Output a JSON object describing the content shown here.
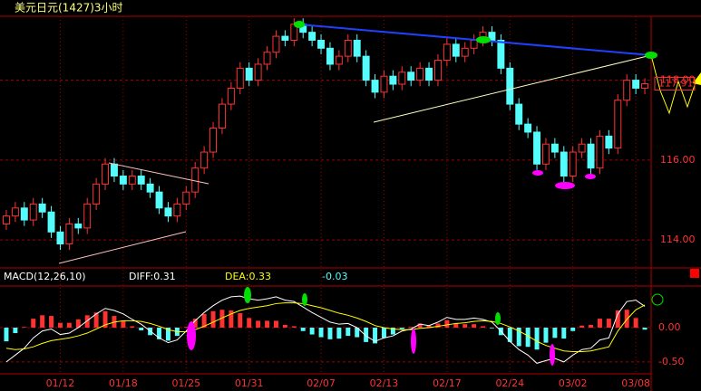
{
  "chart_data": {
    "type": "candlestick",
    "title": "美元日元(1427)3小时",
    "categories": [
      null,
      null,
      null,
      null,
      null,
      null,
      "01/12",
      null,
      null,
      null,
      null,
      null,
      null,
      "01/18",
      null,
      null,
      null,
      null,
      null,
      null,
      "01/25",
      null,
      null,
      null,
      null,
      null,
      null,
      "01/31",
      null,
      null,
      null,
      null,
      null,
      null,
      null,
      "02/07",
      null,
      null,
      null,
      null,
      null,
      null,
      "02/13",
      null,
      null,
      null,
      null,
      null,
      null,
      "02/17",
      null,
      null,
      null,
      null,
      null,
      null,
      "02/24",
      null,
      null,
      null,
      null,
      null,
      null,
      "03/02",
      null,
      null,
      null,
      null,
      null,
      null,
      "03/08",
      null
    ],
    "candles": [
      [
        114.4,
        114.75,
        114.25,
        114.6
      ],
      [
        114.6,
        114.95,
        114.45,
        114.8
      ],
      [
        114.8,
        114.95,
        114.35,
        114.5
      ],
      [
        114.5,
        115.05,
        114.35,
        114.9
      ],
      [
        114.9,
        115.05,
        114.55,
        114.7
      ],
      [
        114.7,
        114.85,
        114.05,
        114.2
      ],
      [
        114.2,
        114.35,
        113.75,
        113.9
      ],
      [
        113.9,
        114.55,
        113.75,
        114.4
      ],
      [
        114.4,
        114.55,
        114.15,
        114.3
      ],
      [
        114.3,
        115.05,
        114.15,
        114.9
      ],
      [
        114.9,
        115.55,
        114.75,
        115.4
      ],
      [
        115.4,
        116.05,
        115.25,
        115.9
      ],
      [
        115.9,
        116.05,
        115.45,
        115.6
      ],
      [
        115.6,
        115.75,
        115.25,
        115.4
      ],
      [
        115.4,
        115.75,
        115.25,
        115.6
      ],
      [
        115.6,
        115.75,
        115.25,
        115.4
      ],
      [
        115.4,
        115.55,
        115.05,
        115.2
      ],
      [
        115.2,
        115.35,
        114.65,
        114.8
      ],
      [
        114.8,
        114.95,
        114.45,
        114.6
      ],
      [
        114.6,
        115.05,
        114.45,
        114.9
      ],
      [
        114.9,
        115.35,
        114.75,
        115.2
      ],
      [
        115.2,
        115.95,
        115.05,
        115.8
      ],
      [
        115.8,
        116.35,
        115.65,
        116.2
      ],
      [
        116.2,
        116.95,
        116.05,
        116.8
      ],
      [
        116.8,
        117.55,
        116.65,
        117.4
      ],
      [
        117.4,
        117.95,
        117.25,
        117.8
      ],
      [
        117.8,
        118.45,
        117.65,
        118.3
      ],
      [
        118.3,
        118.45,
        117.85,
        118.0
      ],
      [
        118.0,
        118.55,
        117.85,
        118.4
      ],
      [
        118.4,
        118.85,
        118.25,
        118.7
      ],
      [
        118.7,
        119.25,
        118.55,
        119.1
      ],
      [
        119.1,
        119.25,
        118.85,
        119.0
      ],
      [
        119.0,
        119.55,
        118.85,
        119.4
      ],
      [
        119.4,
        119.55,
        119.05,
        119.2
      ],
      [
        119.2,
        119.35,
        118.85,
        119.0
      ],
      [
        119.0,
        119.15,
        118.65,
        118.8
      ],
      [
        118.8,
        118.95,
        118.25,
        118.4
      ],
      [
        118.4,
        118.75,
        118.25,
        118.6
      ],
      [
        118.6,
        119.15,
        118.45,
        119.0
      ],
      [
        119.0,
        119.15,
        118.45,
        118.6
      ],
      [
        118.6,
        118.75,
        117.85,
        118.0
      ],
      [
        118.0,
        118.15,
        117.55,
        117.7
      ],
      [
        117.7,
        118.25,
        117.55,
        118.1
      ],
      [
        118.1,
        118.25,
        117.75,
        117.9
      ],
      [
        117.9,
        118.35,
        117.75,
        118.2
      ],
      [
        118.2,
        118.35,
        117.85,
        118.0
      ],
      [
        118.0,
        118.45,
        117.85,
        118.3
      ],
      [
        118.3,
        118.45,
        117.85,
        118.0
      ],
      [
        118.0,
        118.65,
        117.85,
        118.5
      ],
      [
        118.5,
        119.05,
        118.35,
        118.9
      ],
      [
        118.9,
        119.05,
        118.45,
        118.6
      ],
      [
        118.6,
        118.95,
        118.45,
        118.8
      ],
      [
        118.8,
        119.15,
        118.65,
        119.0
      ],
      [
        119.0,
        119.35,
        118.85,
        119.2
      ],
      [
        119.2,
        119.35,
        118.85,
        119.0
      ],
      [
        119.0,
        119.15,
        118.15,
        118.3
      ],
      [
        118.3,
        118.45,
        117.25,
        117.4
      ],
      [
        117.4,
        117.55,
        116.75,
        116.9
      ],
      [
        116.9,
        117.05,
        116.55,
        116.7
      ],
      [
        116.7,
        116.85,
        115.75,
        115.9
      ],
      [
        115.9,
        116.55,
        115.75,
        116.4
      ],
      [
        116.4,
        116.55,
        116.05,
        116.2
      ],
      [
        116.2,
        116.35,
        115.45,
        115.6
      ],
      [
        115.6,
        116.35,
        115.45,
        116.2
      ],
      [
        116.2,
        116.55,
        116.05,
        116.4
      ],
      [
        116.4,
        116.55,
        115.65,
        115.8
      ],
      [
        115.8,
        116.75,
        115.65,
        116.6
      ],
      [
        116.6,
        116.75,
        116.15,
        116.3
      ],
      [
        116.3,
        117.65,
        116.15,
        117.5
      ],
      [
        117.5,
        118.15,
        117.35,
        118.0
      ],
      [
        118.0,
        118.15,
        117.65,
        117.8
      ],
      [
        117.8,
        118.05,
        117.65,
        117.91
      ]
    ],
    "up_color": "#ff3232",
    "down_color": "#54fcfc",
    "ylim": [
      113.3,
      119.6
    ],
    "yticks": [
      {
        "value": 114,
        "label": "114.00"
      },
      {
        "value": 116,
        "label": "116.00"
      },
      {
        "value": 118,
        "label": "118.00"
      }
    ],
    "last_price": 117.91,
    "grid": true,
    "indicator": {
      "type": "macd",
      "name": "MACD(12,26,10)",
      "diff_text": "DIFF:0.31",
      "dea_text": "DEA:0.33",
      "macd_text": "-0.03",
      "ylim": [
        -0.66,
        0.58
      ],
      "yticks": [
        {
          "value": 0,
          "label": "0.00"
        },
        {
          "value": -0.5,
          "label": "-0.50"
        }
      ],
      "diff_line": {
        "color": "#ffffff",
        "values": [
          -0.5,
          -0.4,
          -0.3,
          -0.15,
          -0.05,
          -0.02,
          -0.1,
          -0.08,
          0.0,
          0.1,
          0.2,
          0.28,
          0.25,
          0.2,
          0.12,
          0.05,
          -0.05,
          -0.15,
          -0.22,
          -0.18,
          -0.05,
          0.1,
          0.22,
          0.32,
          0.4,
          0.45,
          0.46,
          0.42,
          0.4,
          0.42,
          0.45,
          0.4,
          0.38,
          0.3,
          0.22,
          0.15,
          0.08,
          0.05,
          0.06,
          0.0,
          -0.12,
          -0.2,
          -0.15,
          -0.12,
          -0.05,
          -0.02,
          0.05,
          0.03,
          0.08,
          0.15,
          0.12,
          0.12,
          0.14,
          0.12,
          0.08,
          -0.05,
          -0.2,
          -0.32,
          -0.4,
          -0.52,
          -0.48,
          -0.45,
          -0.5,
          -0.4,
          -0.32,
          -0.3,
          -0.18,
          -0.15,
          0.2,
          0.38,
          0.4,
          0.31
        ]
      },
      "dea_line": {
        "color": "#ffff00",
        "values": [
          -0.3,
          -0.32,
          -0.31,
          -0.28,
          -0.23,
          -0.19,
          -0.17,
          -0.15,
          -0.12,
          -0.08,
          -0.02,
          0.04,
          0.08,
          0.1,
          0.1,
          0.09,
          0.06,
          0.02,
          -0.03,
          -0.06,
          -0.06,
          -0.03,
          0.02,
          0.08,
          0.14,
          0.2,
          0.25,
          0.28,
          0.3,
          0.32,
          0.35,
          0.36,
          0.36,
          0.35,
          0.32,
          0.29,
          0.25,
          0.21,
          0.18,
          0.14,
          0.09,
          0.03,
          0.0,
          -0.02,
          -0.03,
          -0.03,
          -0.01,
          0.0,
          0.02,
          0.04,
          0.06,
          0.07,
          0.09,
          0.1,
          0.09,
          0.06,
          0.01,
          -0.05,
          -0.12,
          -0.2,
          -0.26,
          -0.3,
          -0.34,
          -0.35,
          -0.35,
          -0.34,
          -0.31,
          -0.28,
          -0.05,
          0.12,
          0.26,
          0.33
        ]
      },
      "histogram": [
        -0.2,
        -0.08,
        0.01,
        0.13,
        0.18,
        0.17,
        0.07,
        0.07,
        0.12,
        0.18,
        0.22,
        0.24,
        0.17,
        0.1,
        0.02,
        -0.04,
        -0.11,
        -0.17,
        -0.19,
        -0.12,
        0.01,
        0.13,
        0.2,
        0.24,
        0.26,
        0.25,
        0.21,
        0.14,
        0.1,
        0.1,
        0.1,
        0.04,
        0.02,
        -0.05,
        -0.1,
        -0.14,
        -0.17,
        -0.16,
        -0.12,
        -0.14,
        -0.21,
        -0.23,
        -0.15,
        -0.1,
        -0.02,
        0.01,
        0.06,
        0.03,
        0.06,
        0.11,
        0.06,
        0.05,
        0.05,
        0.02,
        -0.01,
        -0.11,
        -0.21,
        -0.27,
        -0.28,
        -0.32,
        -0.22,
        -0.15,
        -0.16,
        -0.05,
        0.03,
        0.04,
        0.13,
        0.13,
        0.25,
        0.26,
        0.14,
        -0.03
      ],
      "pos_color": "#ff3232",
      "neg_color": "#54fcfc"
    }
  }
}
